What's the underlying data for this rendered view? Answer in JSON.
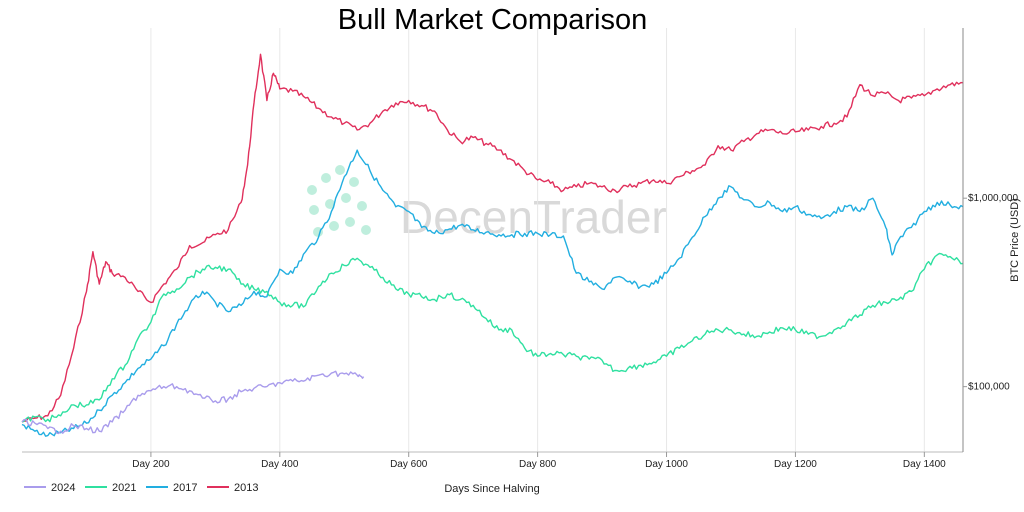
{
  "chart_data": {
    "type": "line",
    "title": "Bull Market Comparison",
    "xlabel": "Days Since Halving",
    "ylabel": "BTC Price (USD)",
    "y_scale": "log",
    "xlim": [
      0,
      1460
    ],
    "ylim": [
      45000,
      8000000
    ],
    "grid": "vertical",
    "legend_position": "bottom-left",
    "x_ticks": [
      200,
      400,
      600,
      800,
      1000,
      1200,
      1400
    ],
    "x_tick_labels": [
      "Day 200",
      "Day 400",
      "Day 600",
      "Day 800",
      "Day 1000",
      "Day 1200",
      "Day 1400"
    ],
    "y_ticks": [
      100000,
      1000000
    ],
    "y_tick_labels": [
      "$100,000",
      "$1,000,000"
    ],
    "watermark": "DecenTrader",
    "series": [
      {
        "name": "2024",
        "color": "#a99cec",
        "points": [
          [
            0,
            65000
          ],
          [
            20,
            64000
          ],
          [
            40,
            60000
          ],
          [
            60,
            58000
          ],
          [
            80,
            62000
          ],
          [
            100,
            60000
          ],
          [
            120,
            58000
          ],
          [
            140,
            65000
          ],
          [
            160,
            75000
          ],
          [
            180,
            90000
          ],
          [
            200,
            95000
          ],
          [
            220,
            100000
          ],
          [
            240,
            100000
          ],
          [
            260,
            95000
          ],
          [
            280,
            87000
          ],
          [
            300,
            84000
          ],
          [
            320,
            86000
          ],
          [
            340,
            94000
          ],
          [
            360,
            98000
          ],
          [
            380,
            100000
          ],
          [
            400,
            105000
          ],
          [
            420,
            107000
          ],
          [
            440,
            108000
          ],
          [
            460,
            115000
          ],
          [
            480,
            118000
          ],
          [
            500,
            117000
          ],
          [
            520,
            115000
          ],
          [
            530,
            113000
          ]
        ]
      },
      {
        "name": "2021",
        "color": "#2fe0a0",
        "points": [
          [
            0,
            65000
          ],
          [
            20,
            69000
          ],
          [
            40,
            67000
          ],
          [
            60,
            70000
          ],
          [
            80,
            80000
          ],
          [
            100,
            80000
          ],
          [
            120,
            85000
          ],
          [
            140,
            110000
          ],
          [
            160,
            130000
          ],
          [
            180,
            180000
          ],
          [
            200,
            220000
          ],
          [
            220,
            310000
          ],
          [
            240,
            330000
          ],
          [
            260,
            380000
          ],
          [
            280,
            420000
          ],
          [
            300,
            430000
          ],
          [
            320,
            420000
          ],
          [
            340,
            350000
          ],
          [
            360,
            330000
          ],
          [
            380,
            320000
          ],
          [
            400,
            280000
          ],
          [
            420,
            270000
          ],
          [
            440,
            270000
          ],
          [
            460,
            340000
          ],
          [
            480,
            400000
          ],
          [
            500,
            440000
          ],
          [
            520,
            480000
          ],
          [
            540,
            430000
          ],
          [
            560,
            380000
          ],
          [
            580,
            330000
          ],
          [
            600,
            310000
          ],
          [
            620,
            300000
          ],
          [
            640,
            290000
          ],
          [
            660,
            310000
          ],
          [
            680,
            290000
          ],
          [
            700,
            270000
          ],
          [
            720,
            230000
          ],
          [
            740,
            200000
          ],
          [
            760,
            200000
          ],
          [
            780,
            160000
          ],
          [
            800,
            145000
          ],
          [
            820,
            150000
          ],
          [
            840,
            148000
          ],
          [
            860,
            145000
          ],
          [
            880,
            140000
          ],
          [
            900,
            138000
          ],
          [
            920,
            122000
          ],
          [
            940,
            125000
          ],
          [
            960,
            130000
          ],
          [
            980,
            135000
          ],
          [
            1000,
            145000
          ],
          [
            1020,
            160000
          ],
          [
            1040,
            175000
          ],
          [
            1060,
            190000
          ],
          [
            1080,
            200000
          ],
          [
            1100,
            200000
          ],
          [
            1120,
            190000
          ],
          [
            1140,
            185000
          ],
          [
            1160,
            195000
          ],
          [
            1180,
            205000
          ],
          [
            1200,
            200000
          ],
          [
            1220,
            190000
          ],
          [
            1240,
            185000
          ],
          [
            1260,
            200000
          ],
          [
            1280,
            220000
          ],
          [
            1300,
            240000
          ],
          [
            1320,
            270000
          ],
          [
            1340,
            280000
          ],
          [
            1360,
            290000
          ],
          [
            1380,
            320000
          ],
          [
            1400,
            420000
          ],
          [
            1420,
            500000
          ],
          [
            1440,
            490000
          ],
          [
            1460,
            450000
          ]
        ]
      },
      {
        "name": "2017",
        "color": "#22aee0",
        "points": [
          [
            0,
            63000
          ],
          [
            20,
            58000
          ],
          [
            40,
            55000
          ],
          [
            60,
            57000
          ],
          [
            80,
            60000
          ],
          [
            100,
            64000
          ],
          [
            120,
            75000
          ],
          [
            140,
            90000
          ],
          [
            160,
            105000
          ],
          [
            180,
            125000
          ],
          [
            200,
            140000
          ],
          [
            220,
            165000
          ],
          [
            240,
            215000
          ],
          [
            260,
            270000
          ],
          [
            280,
            320000
          ],
          [
            300,
            280000
          ],
          [
            320,
            250000
          ],
          [
            340,
            270000
          ],
          [
            360,
            320000
          ],
          [
            380,
            300000
          ],
          [
            400,
            420000
          ],
          [
            420,
            400000
          ],
          [
            440,
            520000
          ],
          [
            460,
            620000
          ],
          [
            480,
            850000
          ],
          [
            500,
            1300000
          ],
          [
            520,
            1800000
          ],
          [
            540,
            1400000
          ],
          [
            560,
            1100000
          ],
          [
            580,
            900000
          ],
          [
            600,
            850000
          ],
          [
            620,
            700000
          ],
          [
            640,
            650000
          ],
          [
            660,
            680000
          ],
          [
            680,
            720000
          ],
          [
            700,
            680000
          ],
          [
            720,
            660000
          ],
          [
            740,
            640000
          ],
          [
            760,
            640000
          ],
          [
            780,
            650000
          ],
          [
            800,
            650000
          ],
          [
            820,
            640000
          ],
          [
            840,
            630000
          ],
          [
            860,
            400000
          ],
          [
            880,
            360000
          ],
          [
            900,
            330000
          ],
          [
            920,
            380000
          ],
          [
            940,
            360000
          ],
          [
            960,
            340000
          ],
          [
            980,
            350000
          ],
          [
            1000,
            400000
          ],
          [
            1020,
            480000
          ],
          [
            1040,
            620000
          ],
          [
            1060,
            800000
          ],
          [
            1080,
            1000000
          ],
          [
            1100,
            1150000
          ],
          [
            1120,
            980000
          ],
          [
            1140,
            900000
          ],
          [
            1160,
            950000
          ],
          [
            1180,
            850000
          ],
          [
            1200,
            900000
          ],
          [
            1220,
            820000
          ],
          [
            1240,
            780000
          ],
          [
            1260,
            850000
          ],
          [
            1280,
            900000
          ],
          [
            1300,
            850000
          ],
          [
            1320,
            1000000
          ],
          [
            1340,
            700000
          ],
          [
            1350,
            500000
          ],
          [
            1360,
            600000
          ],
          [
            1380,
            700000
          ],
          [
            1400,
            850000
          ],
          [
            1420,
            950000
          ],
          [
            1440,
            920000
          ],
          [
            1460,
            900000
          ]
        ]
      },
      {
        "name": "2013",
        "color": "#e0305c",
        "points": [
          [
            0,
            65000
          ],
          [
            20,
            68000
          ],
          [
            40,
            70000
          ],
          [
            60,
            90000
          ],
          [
            80,
            160000
          ],
          [
            100,
            320000
          ],
          [
            110,
            520000
          ],
          [
            120,
            350000
          ],
          [
            130,
            460000
          ],
          [
            140,
            400000
          ],
          [
            160,
            380000
          ],
          [
            180,
            320000
          ],
          [
            200,
            280000
          ],
          [
            220,
            350000
          ],
          [
            240,
            420000
          ],
          [
            260,
            560000
          ],
          [
            280,
            580000
          ],
          [
            300,
            640000
          ],
          [
            320,
            680000
          ],
          [
            340,
            950000
          ],
          [
            350,
            1500000
          ],
          [
            360,
            3200000
          ],
          [
            370,
            5800000
          ],
          [
            380,
            3300000
          ],
          [
            390,
            4600000
          ],
          [
            400,
            3800000
          ],
          [
            420,
            3700000
          ],
          [
            440,
            3400000
          ],
          [
            460,
            3000000
          ],
          [
            480,
            2700000
          ],
          [
            500,
            2500000
          ],
          [
            520,
            2300000
          ],
          [
            540,
            2500000
          ],
          [
            560,
            2900000
          ],
          [
            580,
            3200000
          ],
          [
            600,
            3300000
          ],
          [
            620,
            3100000
          ],
          [
            640,
            2900000
          ],
          [
            660,
            2300000
          ],
          [
            680,
            2000000
          ],
          [
            700,
            2100000
          ],
          [
            720,
            1950000
          ],
          [
            740,
            1800000
          ],
          [
            760,
            1600000
          ],
          [
            780,
            1400000
          ],
          [
            800,
            1250000
          ],
          [
            820,
            1200000
          ],
          [
            840,
            1100000
          ],
          [
            860,
            1150000
          ],
          [
            880,
            1200000
          ],
          [
            900,
            1150000
          ],
          [
            920,
            1100000
          ],
          [
            940,
            1150000
          ],
          [
            960,
            1200000
          ],
          [
            980,
            1250000
          ],
          [
            1000,
            1200000
          ],
          [
            1020,
            1300000
          ],
          [
            1040,
            1400000
          ],
          [
            1060,
            1500000
          ],
          [
            1080,
            1900000
          ],
          [
            1100,
            1800000
          ],
          [
            1120,
            2000000
          ],
          [
            1140,
            2200000
          ],
          [
            1160,
            2300000
          ],
          [
            1180,
            2200000
          ],
          [
            1200,
            2250000
          ],
          [
            1220,
            2300000
          ],
          [
            1240,
            2400000
          ],
          [
            1260,
            2500000
          ],
          [
            1280,
            2700000
          ],
          [
            1300,
            4000000
          ],
          [
            1320,
            3500000
          ],
          [
            1340,
            3600000
          ],
          [
            1360,
            3300000
          ],
          [
            1380,
            3400000
          ],
          [
            1400,
            3500000
          ],
          [
            1420,
            3800000
          ],
          [
            1440,
            4000000
          ],
          [
            1460,
            4100000
          ]
        ]
      }
    ]
  }
}
